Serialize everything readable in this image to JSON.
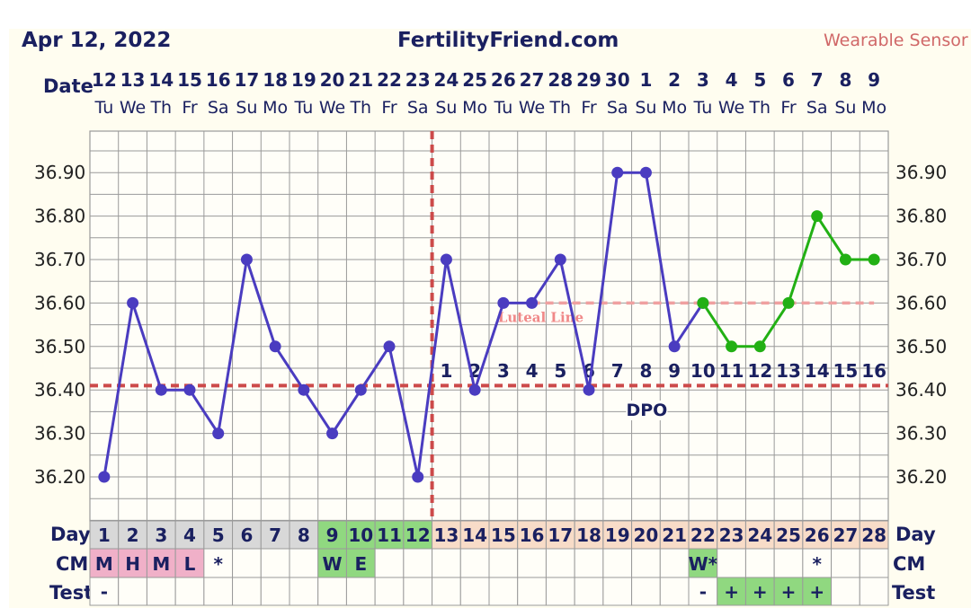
{
  "header": {
    "date": "Apr 12, 2022",
    "site": "FertilityFriend.com",
    "badge": "Wearable Sensor"
  },
  "colors": {
    "temp_line": "#4a3cc0",
    "temp_line_sensor": "#22b014",
    "coverline": "#cc4a4a",
    "luteal_line": "#f0a0a0",
    "ovulation_line": "#cc4a4a",
    "grid": "#9a9a9a",
    "label": "#1a2060",
    "cycle_day_pre": "#d8d8d8",
    "cycle_day_fertile": "#90d880",
    "cycle_day_post": "#f8dcc8",
    "cm_pink": "#f0b0c8",
    "cm_green": "#90d880",
    "test_green": "#90d880"
  },
  "chart_data": {
    "type": "line",
    "title": "",
    "row_labels": {
      "date": "Date",
      "day": "Day",
      "cm": "CM",
      "test": "Test",
      "dpo": "DPO"
    },
    "dates": [
      "12",
      "13",
      "14",
      "15",
      "16",
      "17",
      "18",
      "19",
      "20",
      "21",
      "22",
      "23",
      "24",
      "25",
      "26",
      "27",
      "28",
      "29",
      "30",
      "1",
      "2",
      "3",
      "4",
      "5",
      "6",
      "7",
      "8",
      "9"
    ],
    "weekdays": [
      "Tu",
      "We",
      "Th",
      "Fr",
      "Sa",
      "Su",
      "Mo",
      "Tu",
      "We",
      "Th",
      "Fr",
      "Sa",
      "Su",
      "Mo",
      "Tu",
      "We",
      "Th",
      "Fr",
      "Sa",
      "Su",
      "Mo",
      "Tu",
      "We",
      "Th",
      "Fr",
      "Sa",
      "Su",
      "Mo"
    ],
    "cycle_days": [
      "1",
      "2",
      "3",
      "4",
      "5",
      "6",
      "7",
      "8",
      "9",
      "10",
      "11",
      "12",
      "13",
      "14",
      "15",
      "16",
      "17",
      "18",
      "19",
      "20",
      "21",
      "22",
      "23",
      "24",
      "25",
      "26",
      "27",
      "28"
    ],
    "y_ticks": [
      "36.20",
      "36.30",
      "36.40",
      "36.50",
      "36.60",
      "36.70",
      "36.80",
      "36.90"
    ],
    "ylim": [
      36.1,
      37.0
    ],
    "grid": true,
    "series": [
      {
        "values": [
          36.2,
          36.6,
          36.4,
          36.4,
          36.3,
          36.7,
          36.5,
          36.4,
          36.3,
          36.4,
          36.5,
          36.2,
          36.7,
          36.4,
          36.6,
          36.6,
          36.7,
          36.4,
          36.9,
          36.9,
          36.5,
          36.6,
          null,
          null,
          null,
          null,
          null,
          null
        ]
      },
      {
        "values": [
          null,
          null,
          null,
          null,
          null,
          null,
          null,
          null,
          null,
          null,
          null,
          null,
          null,
          null,
          null,
          null,
          null,
          null,
          null,
          null,
          null,
          36.6,
          36.5,
          36.5,
          36.6,
          36.8,
          36.7,
          36.7
        ]
      }
    ],
    "coverline": 36.41,
    "ovulation_day_index": 11,
    "luteal_line": {
      "value": 36.6,
      "start_index": 15,
      "end_index": 27,
      "label": "Luteal Line"
    },
    "dpo_numbers": [
      "1",
      "2",
      "3",
      "4",
      "5",
      "6",
      "7",
      "8",
      "9",
      "10",
      "11",
      "12",
      "13",
      "14",
      "15",
      "16"
    ],
    "cm": [
      "M",
      "H",
      "M",
      "L",
      "*",
      "",
      "",
      "",
      "W",
      "E",
      "",
      "",
      "",
      "",
      "",
      "",
      "",
      "",
      "",
      "",
      "",
      "W*",
      "",
      "",
      "",
      "*",
      "",
      ""
    ],
    "tests": [
      "-",
      "",
      "",
      "",
      "",
      "",
      "",
      "",
      "",
      "",
      "",
      "",
      "",
      "",
      "",
      "",
      "",
      "",
      "",
      "",
      "",
      "-",
      "+",
      "+",
      "+",
      "+",
      "",
      ""
    ]
  }
}
